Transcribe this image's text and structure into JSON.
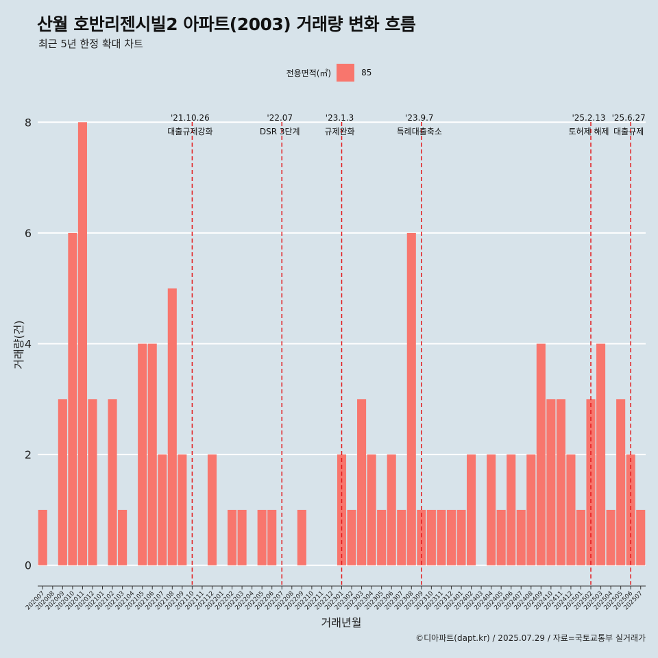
{
  "title": "산월 호반리젠시빌2 아파트(2003) 거래량 변화 흐름",
  "subtitle": "최근 5년 한정 확대 차트",
  "legend": {
    "title": "전용면적(㎡)",
    "label": "85",
    "color": "#f8766d"
  },
  "caption": "©디아파트(dapt.kr) / 2025.07.29 / 자료=국토교통부 실거래가",
  "colors": {
    "background": "#d7e3ea",
    "bar": "#f8766d",
    "event_line": "#e31a1c",
    "grid": "#ffffff"
  },
  "chart_data": {
    "type": "bar",
    "xlabel": "거래년월",
    "ylabel": "거래량(건)",
    "ylim": [
      -0.35,
      8.35
    ],
    "yticks": [
      0,
      2,
      4,
      6,
      8
    ],
    "grid": "horizontal",
    "legend_position": "top",
    "series": [
      {
        "name": "85"
      }
    ],
    "categories": [
      "202007",
      "202008",
      "202009",
      "202010",
      "202011",
      "202012",
      "202101",
      "202102",
      "202103",
      "202104",
      "202105",
      "202106",
      "202107",
      "202108",
      "202109",
      "202110",
      "202111",
      "202112",
      "202201",
      "202202",
      "202203",
      "202204",
      "202205",
      "202206",
      "202207",
      "202208",
      "202209",
      "202210",
      "202211",
      "202212",
      "202301",
      "202302",
      "202303",
      "202304",
      "202305",
      "202306",
      "202307",
      "202308",
      "202309",
      "202310",
      "202311",
      "202312",
      "202401",
      "202402",
      "202403",
      "202404",
      "202405",
      "202406",
      "202407",
      "202408",
      "202409",
      "202410",
      "202411",
      "202412",
      "202501",
      "202502",
      "202503",
      "202504",
      "202505",
      "202506",
      "202507"
    ],
    "values": [
      1,
      0,
      3,
      6,
      8,
      3,
      0,
      3,
      1,
      0,
      4,
      4,
      2,
      5,
      2,
      0,
      0,
      2,
      0,
      1,
      1,
      0,
      1,
      1,
      0,
      0,
      1,
      0,
      0,
      0,
      2,
      1,
      3,
      2,
      1,
      2,
      1,
      6,
      1,
      1,
      1,
      1,
      1,
      2,
      0,
      2,
      1,
      2,
      1,
      2,
      4,
      3,
      3,
      2,
      1,
      3,
      4,
      1,
      3,
      2,
      1
    ],
    "annotations": [
      {
        "date": "'21.10.26",
        "label": "대출규제강화",
        "x": 15.5
      },
      {
        "date": "'22.07",
        "label": "DSR 3단계",
        "x": 24.5
      },
      {
        "date": "'23.1.3",
        "label": "규제완화",
        "x": 30.5
      },
      {
        "date": "'23.9.7",
        "label": "특례대출축소",
        "x": 38.5
      },
      {
        "date": "'25.2.13",
        "label": "토허제 해제",
        "x": 55.5
      },
      {
        "date": "'25.6.27",
        "label": "대출규제",
        "x": 59.5
      }
    ]
  }
}
